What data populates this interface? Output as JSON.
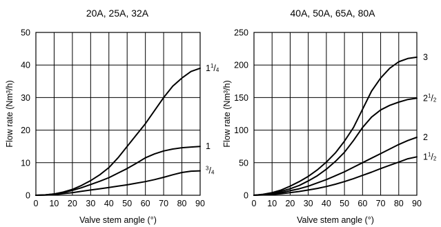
{
  "chart_data": [
    {
      "type": "line",
      "title": "20A, 25A, 32A",
      "xlabel": "Valve stem angle (°)",
      "ylabel": "Flow rate (Nm³/h)",
      "xlim": [
        0,
        90
      ],
      "ylim": [
        0,
        50
      ],
      "x_ticks": [
        "0",
        "10",
        "20",
        "30",
        "40",
        "50",
        "60",
        "70",
        "80",
        "90"
      ],
      "y_ticks": [
        "0",
        "10",
        "20",
        "30",
        "40",
        "50"
      ],
      "grid": true,
      "x": [
        0,
        5,
        10,
        15,
        20,
        25,
        30,
        35,
        40,
        45,
        50,
        55,
        60,
        65,
        70,
        75,
        80,
        85,
        90
      ],
      "series": [
        {
          "name": "1 1/4",
          "values": [
            0,
            0.1,
            0.4,
            1.0,
            1.8,
            3.0,
            4.5,
            6.3,
            8.5,
            11.5,
            15.0,
            18.5,
            22.0,
            26.0,
            30.0,
            33.5,
            36.0,
            38.0,
            39.0
          ]
        },
        {
          "name": "1",
          "values": [
            0,
            0.1,
            0.4,
            0.8,
            1.5,
            2.3,
            3.3,
            4.3,
            5.4,
            6.8,
            8.2,
            9.8,
            11.5,
            12.7,
            13.6,
            14.2,
            14.6,
            14.8,
            15.0
          ]
        },
        {
          "name": "3/4",
          "values": [
            0,
            0.05,
            0.2,
            0.5,
            0.8,
            1.2,
            1.6,
            2.0,
            2.4,
            2.8,
            3.2,
            3.7,
            4.2,
            4.8,
            5.5,
            6.3,
            7.0,
            7.4,
            7.5
          ]
        }
      ],
      "label_parts": [
        {
          "whole": "1",
          "sup": "1",
          "sub": "4"
        },
        {
          "whole": "1",
          "sup": "",
          "sub": ""
        },
        {
          "whole": "",
          "sup": "3",
          "sub": "4"
        }
      ]
    },
    {
      "type": "line",
      "title": "40A, 50A, 65A, 80A",
      "xlabel": "Valve stem angle (°)",
      "ylabel": "Flow rate (Nm³/h)",
      "xlim": [
        0,
        90
      ],
      "ylim": [
        0,
        250
      ],
      "x_ticks": [
        "0",
        "10",
        "20",
        "30",
        "40",
        "50",
        "60",
        "70",
        "80",
        "90"
      ],
      "y_ticks": [
        "0",
        "50",
        "100",
        "150",
        "200",
        "250"
      ],
      "grid": true,
      "x": [
        0,
        5,
        10,
        15,
        20,
        25,
        30,
        35,
        40,
        45,
        50,
        55,
        60,
        65,
        70,
        75,
        80,
        85,
        90
      ],
      "series": [
        {
          "name": "3",
          "values": [
            0,
            1.5,
            4,
            8,
            14,
            21,
            29,
            39,
            51,
            65,
            83,
            104,
            132,
            160,
            180,
            195,
            205,
            210,
            212
          ]
        },
        {
          "name": "2 1/2",
          "values": [
            0,
            1.2,
            3,
            6,
            10,
            15,
            22,
            30,
            40,
            52,
            66,
            84,
            104,
            120,
            131,
            138,
            143,
            147,
            149
          ]
        },
        {
          "name": "2",
          "values": [
            0,
            0.8,
            2,
            4,
            7,
            10,
            14,
            19,
            24,
            30,
            36,
            43,
            50,
            57,
            64,
            71,
            78,
            84,
            89
          ]
        },
        {
          "name": "1 1/2",
          "values": [
            0,
            0.5,
            1.2,
            2.3,
            4,
            5.8,
            8,
            10.5,
            13.5,
            17,
            21,
            25.5,
            30.5,
            35.5,
            41,
            46,
            51,
            56,
            59
          ]
        }
      ],
      "label_parts": [
        {
          "whole": "3",
          "sup": "",
          "sub": ""
        },
        {
          "whole": "2",
          "sup": "1",
          "sub": "2"
        },
        {
          "whole": "2",
          "sup": "",
          "sub": ""
        },
        {
          "whole": "1",
          "sup": "1",
          "sub": "2"
        }
      ]
    }
  ]
}
